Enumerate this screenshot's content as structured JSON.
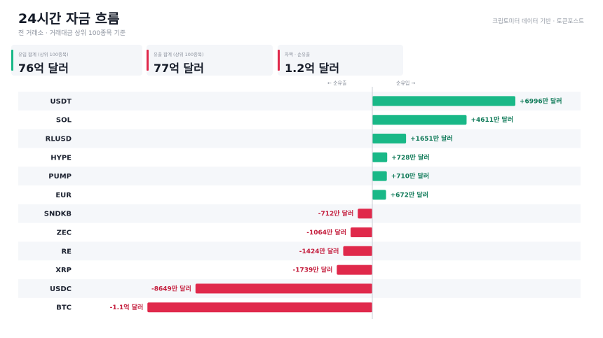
{
  "header": {
    "title": "24시간 자금 흐름",
    "subtitle": "전 거래소 · 거래대금 상위 100종목 기준",
    "source": "크립토미터 데이터 기반 · 토큰포스트"
  },
  "summary": [
    {
      "label": "유입 합계 (상위 100종목)",
      "value": "76억 달러",
      "color": "#19b887"
    },
    {
      "label": "유출 합계 (상위 100종목)",
      "value": "77억 달러",
      "color": "#e0294b"
    },
    {
      "label": "차액 · 순유출",
      "value": "1.2억 달러",
      "color": "#e0294b"
    }
  ],
  "axis_notes": {
    "left": "← 순유출",
    "right": "순유입 →"
  },
  "colors": {
    "inflow": "#19b887",
    "outflow": "#e0294b",
    "inflow_label": "#0f7a58",
    "outflow_label": "#c41d3c",
    "row_stripe": "#f5f7fa"
  },
  "chart_data": {
    "type": "bar",
    "orientation": "horizontal",
    "categories": [
      "USDT",
      "SOL",
      "RLUSD",
      "HYPE",
      "PUMP",
      "EUR",
      "SNDKB",
      "ZEC",
      "RE",
      "XRP",
      "USDC",
      "BTC"
    ],
    "values": [
      6996,
      4611,
      1651,
      728,
      710,
      672,
      -712,
      -1064,
      -1424,
      -1739,
      -8649,
      -11000
    ],
    "value_labels": [
      "+6996만 달러",
      "+4611만 달러",
      "+1651만 달러",
      "+728만 달러",
      "+710만 달러",
      "+672만 달러",
      "-712만 달러",
      "-1064만 달러",
      "-1424만 달러",
      "-1739만 달러",
      "-8649만 달러",
      "-1.1억 달러"
    ],
    "unit": "만 달러"
  }
}
